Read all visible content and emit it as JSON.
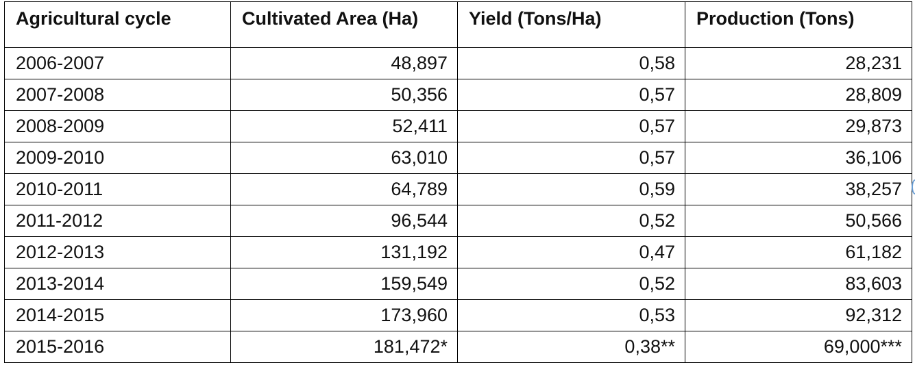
{
  "table": {
    "headers": [
      "Agricultural cycle",
      "Cultivated Area (Ha)",
      "Yield (Tons/Ha)",
      "Production (Tons)"
    ],
    "rows": [
      [
        "2006-2007",
        "48,897",
        "0,58",
        "28,231"
      ],
      [
        "2007-2008",
        "50,356",
        "0,57",
        "28,809"
      ],
      [
        "2008-2009",
        "52,411",
        "0,57",
        "29,873"
      ],
      [
        "2009-2010",
        "63,010",
        "0,57",
        "36,106"
      ],
      [
        "2010-2011",
        "64,789",
        "0,59",
        "38,257"
      ],
      [
        "2011-2012",
        "96,544",
        "0,52",
        "50,566"
      ],
      [
        "2012-2013",
        "131,192",
        "0,47",
        "61,182"
      ],
      [
        "2013-2014",
        "159,549",
        "0,52",
        "83,603"
      ],
      [
        "2014-2015",
        "173,960",
        "0,53",
        "92,312"
      ],
      [
        "2015-2016",
        "181,472*",
        "0,38**",
        "69,000***"
      ]
    ]
  }
}
